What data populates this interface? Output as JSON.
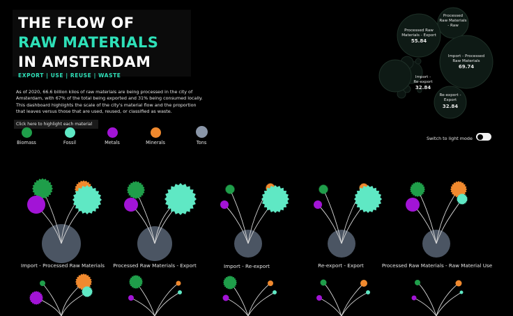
{
  "title": {
    "line1": "THE FLOW OF",
    "line2": "RAW MATERIALS",
    "line3": "IN AMSTERDAM"
  },
  "subtitle": "EXPORT | USE | REUSE | WASTE",
  "intro": "As of 2020, 66.6 billion kilos of raw materials are being processed in the city of Amsterdam, with 67% of the total being exported and 31% being consumed locally. This dashboard highlights the scale of the city's material flow and the proportion that leaves versus those that are used, reused, or classified as waste.",
  "highlight_hint": "Click here to highlight each material",
  "legend": [
    {
      "label": "Biomass",
      "color": "#1f9e4a"
    },
    {
      "label": "Fossil",
      "color": "#5fe8c4"
    },
    {
      "label": "Metals",
      "color": "#a214d6"
    },
    {
      "label": "Minerals",
      "color": "#f0892e"
    },
    {
      "label": "Tons",
      "color": "#8a96a8"
    }
  ],
  "mode_switch_label": "Switch to light mode",
  "bubbles": [
    {
      "line1": "Processed",
      "line2": "Raw Materials",
      "line3": "- Raw",
      "value": ""
    },
    {
      "line1": "Processed Raw",
      "line2": "Materials - Export",
      "line3": "",
      "value": "55.84"
    },
    {
      "line1": "Import - Processed",
      "line2": "Raw Materials",
      "line3": "",
      "value": "69.74"
    },
    {
      "line1": "Import -",
      "line2": "Re-export",
      "line3": "",
      "value": "32.84"
    },
    {
      "line1": "Re-export -",
      "line2": "Export",
      "line3": "",
      "value": "32.84"
    }
  ],
  "flows_row1": [
    {
      "label": "Import - Processed Raw Materials"
    },
    {
      "label": "Processed Raw Materials - Export"
    },
    {
      "label": "Import - Re-export"
    },
    {
      "label": "Re-export - Export"
    },
    {
      "label": "Processed Raw Materials - Raw Material Use"
    }
  ]
}
